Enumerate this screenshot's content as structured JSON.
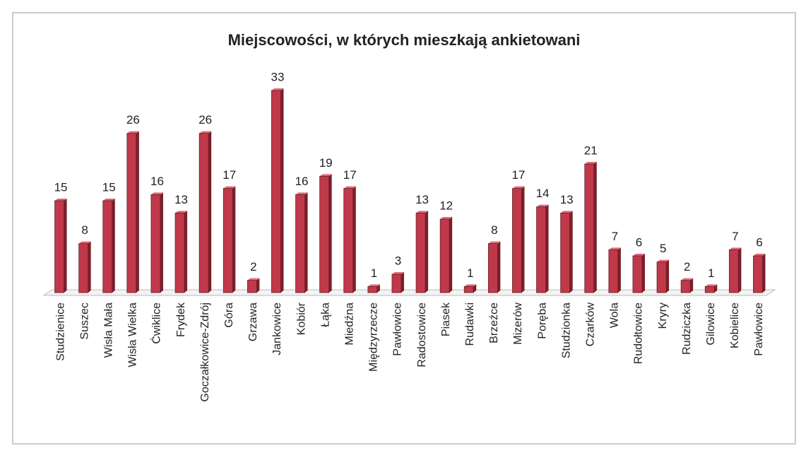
{
  "chart_data": {
    "type": "bar",
    "title": "Miejscowości, w których mieszkają ankietowani",
    "categories": [
      "Studzienice",
      "Suszec",
      "Wisła Mała",
      "Wisła Wielka",
      "Ćwiklice",
      "Frydek",
      "Goczałkowice-Zdrój",
      "Góra",
      "Grzawa",
      "Jankowice",
      "Kobiór",
      "Łąka",
      "Miedźna",
      "Międzyrzecze",
      "Pawłowice",
      "Radostowice",
      "Piasek",
      "Rudawki",
      "Brzeźce",
      "Mizerów",
      "Poręba",
      "Studzionka",
      "Czarków",
      "Wola",
      "Rudołtowice",
      "Kryry",
      "Rudziczka",
      "Gilowice",
      "Kobielice",
      "Pawłowice"
    ],
    "values": [
      15,
      8,
      15,
      26,
      16,
      13,
      26,
      17,
      2,
      33,
      16,
      19,
      17,
      1,
      3,
      13,
      12,
      1,
      8,
      17,
      14,
      13,
      21,
      7,
      6,
      5,
      2,
      1,
      7,
      6
    ],
    "color": "#c0394b"
  }
}
